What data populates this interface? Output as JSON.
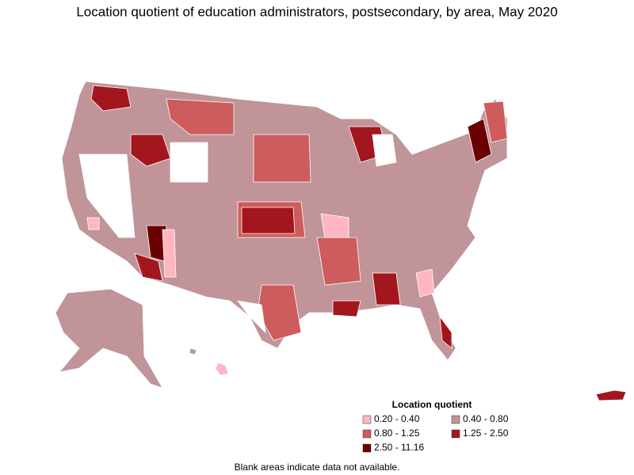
{
  "title": "Location quotient of education administrators, postsecondary, by area, May 2020",
  "legend": {
    "title": "Location quotient",
    "items": [
      {
        "label": "0.20 - 0.40",
        "color": "#ffb6c1"
      },
      {
        "label": "0.40 - 0.80",
        "color": "#c09498"
      },
      {
        "label": "0.80 - 1.25",
        "color": "#cd5c5c"
      },
      {
        "label": "1.25 - 2.50",
        "color": "#a3161d"
      },
      {
        "label": "2.50 - 11.16",
        "color": "#6b0000"
      }
    ]
  },
  "footnote": "Blank areas indicate data not available."
}
